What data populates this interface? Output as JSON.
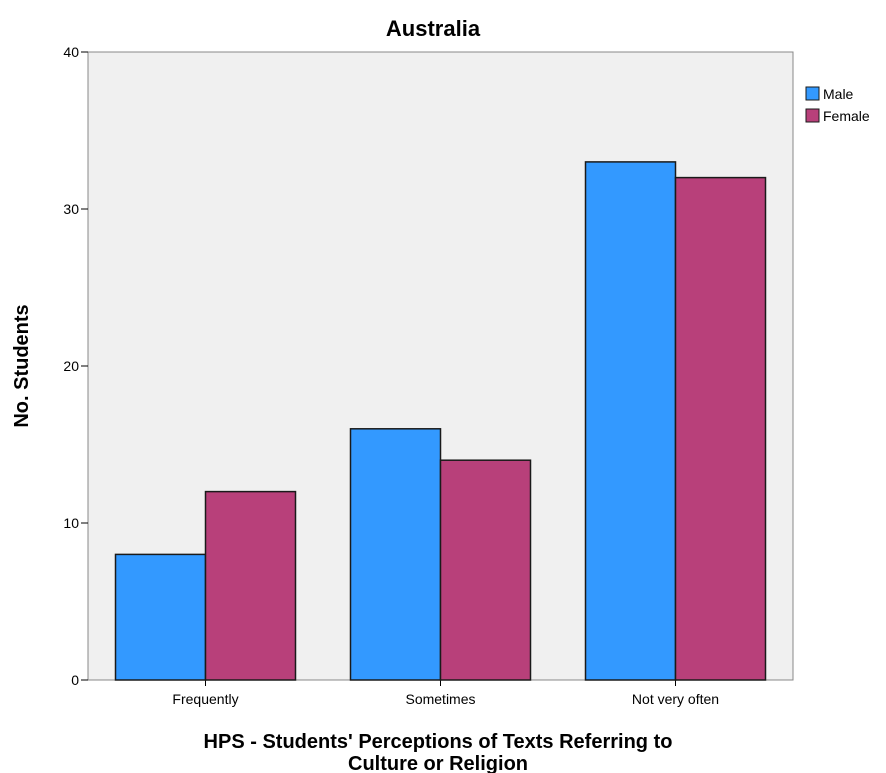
{
  "chart_data": {
    "type": "bar",
    "title": "Australia",
    "xlabel_lines": [
      "HPS - Students' Perceptions of Texts Referring to",
      "Culture or Religion"
    ],
    "ylabel": "No. Students",
    "categories": [
      "Frequently",
      "Sometimes",
      "Not very often"
    ],
    "series": [
      {
        "name": "Male",
        "values": [
          8,
          16,
          33
        ],
        "color": "#3399ff"
      },
      {
        "name": "Female",
        "values": [
          12,
          14,
          32
        ],
        "color": "#b8407a"
      }
    ],
    "ylim": [
      0,
      40
    ],
    "yticks": [
      0,
      10,
      20,
      30,
      40
    ],
    "grid": false,
    "legend": "top-right",
    "plot_background": "#f0f0f0"
  }
}
